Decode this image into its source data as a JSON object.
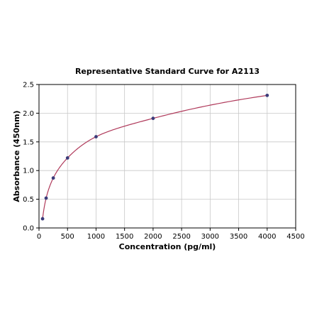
{
  "chart_data": {
    "type": "scatter",
    "title": "Representative Standard Curve for A2113",
    "xlabel": "Concentration (pg/ml)",
    "ylabel": "Absorbance (450nm)",
    "xlim": [
      0,
      4500
    ],
    "ylim": [
      0,
      2.5
    ],
    "x_ticks": [
      "0",
      "500",
      "1000",
      "1500",
      "2000",
      "2500",
      "3000",
      "3500",
      "4000",
      "4500"
    ],
    "y_ticks": [
      "0.0",
      "0.5",
      "1.0",
      "1.5",
      "2.0",
      "2.5"
    ],
    "grid": true,
    "series": [
      {
        "type": "scatter",
        "color": "#3b3b7a",
        "x": [
          62.5,
          125,
          250,
          500,
          1000,
          2000,
          4000
        ],
        "y": [
          0.16,
          0.52,
          0.87,
          1.22,
          1.59,
          1.91,
          2.31
        ]
      },
      {
        "type": "line",
        "fit": "curve",
        "color": "#b03a5b",
        "x": [
          62.5,
          125,
          250,
          500,
          1000,
          2000,
          4000
        ],
        "y": [
          0.16,
          0.52,
          0.87,
          1.22,
          1.59,
          1.91,
          2.31
        ]
      }
    ]
  }
}
